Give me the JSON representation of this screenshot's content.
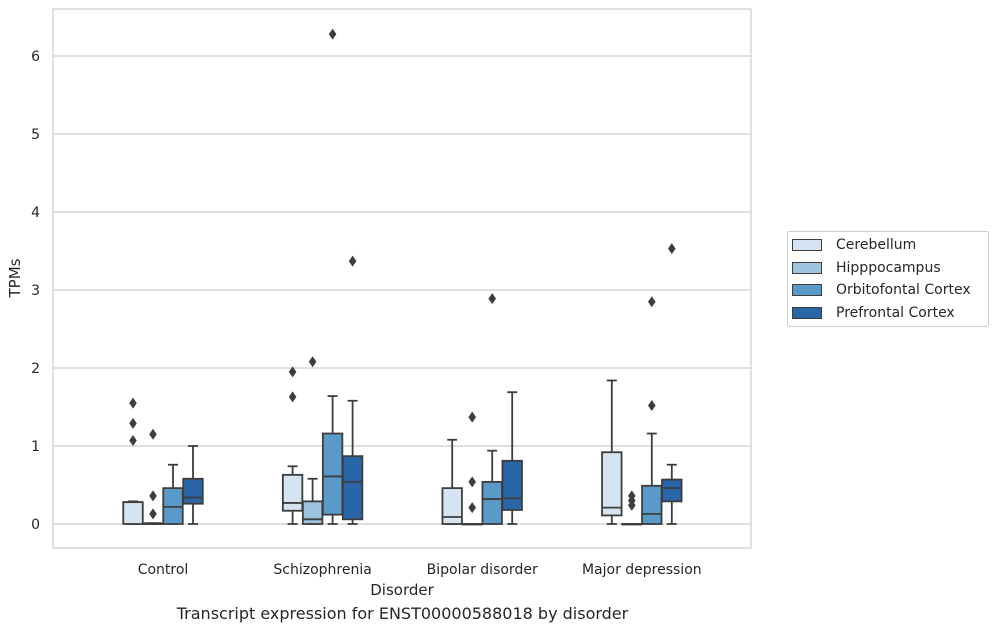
{
  "caption": "Transcript expression for ENST00000588018 by disorder",
  "chart_data": {
    "type": "box",
    "title": "",
    "xlabel": "Disorder",
    "ylabel": "TPMs",
    "ylim": [
      -0.3,
      6.6
    ],
    "yticks": [
      0,
      1,
      2,
      3,
      4,
      5,
      6
    ],
    "grid": "horizontal",
    "legend_position": "right",
    "categories": [
      "Control",
      "Schizophrenia",
      "Bipolar disorder",
      "Major depression"
    ],
    "series": [
      {
        "name": "Cerebellum",
        "color": "#d4e4f2",
        "boxes": [
          {
            "q1": 0,
            "median": 0.28,
            "q3": 0.28,
            "whisker_low": 0,
            "whisker_high": 0.29,
            "outliers": [
              1.07,
              1.29,
              1.55
            ]
          },
          {
            "q1": 0.17,
            "median": 0.27,
            "q3": 0.63,
            "whisker_low": 0,
            "whisker_high": 0.74,
            "outliers": [
              1.63,
              1.95
            ]
          },
          {
            "q1": 0,
            "median": 0.09,
            "q3": 0.46,
            "whisker_low": 0,
            "whisker_high": 1.08,
            "outliers": []
          },
          {
            "q1": 0.11,
            "median": 0.21,
            "q3": 0.92,
            "whisker_low": 0,
            "whisker_high": 1.84,
            "outliers": []
          }
        ]
      },
      {
        "name": "Hipppocampus",
        "color": "#9dc4e0",
        "boxes": [
          {
            "q1": 0,
            "median": 0,
            "q3": 0.01,
            "whisker_low": 0,
            "whisker_high": 0.01,
            "outliers": [
              0.13,
              0.36,
              1.15
            ]
          },
          {
            "q1": 0,
            "median": 0.06,
            "q3": 0.29,
            "whisker_low": 0,
            "whisker_high": 0.58,
            "outliers": [
              2.08
            ]
          },
          {
            "q1": 0,
            "median": 0,
            "q3": 0,
            "whisker_low": 0,
            "whisker_high": 0,
            "outliers": [
              0.21,
              0.54,
              1.37
            ]
          },
          {
            "q1": 0,
            "median": 0,
            "q3": 0,
            "whisker_low": 0,
            "whisker_high": 0,
            "outliers": [
              0.24,
              0.3,
              0.36
            ]
          }
        ]
      },
      {
        "name": "Orbitofontal Cortex",
        "color": "#5a9ac8",
        "boxes": [
          {
            "q1": 0,
            "median": 0.22,
            "q3": 0.46,
            "whisker_low": 0,
            "whisker_high": 0.76,
            "outliers": []
          },
          {
            "q1": 0.12,
            "median": 0.61,
            "q3": 1.16,
            "whisker_low": 0,
            "whisker_high": 1.64,
            "outliers": [
              6.28
            ]
          },
          {
            "q1": 0,
            "median": 0.32,
            "q3": 0.54,
            "whisker_low": 0,
            "whisker_high": 0.94,
            "outliers": [
              2.89
            ]
          },
          {
            "q1": 0,
            "median": 0.13,
            "q3": 0.49,
            "whisker_low": 0,
            "whisker_high": 1.16,
            "outliers": [
              1.52,
              2.85
            ]
          }
        ]
      },
      {
        "name": "Prefrontal Cortex",
        "color": "#2866a8",
        "boxes": [
          {
            "q1": 0.26,
            "median": 0.34,
            "q3": 0.58,
            "whisker_low": 0,
            "whisker_high": 1.0,
            "outliers": []
          },
          {
            "q1": 0.06,
            "median": 0.54,
            "q3": 0.87,
            "whisker_low": 0,
            "whisker_high": 1.58,
            "outliers": [
              3.37
            ]
          },
          {
            "q1": 0.18,
            "median": 0.33,
            "q3": 0.81,
            "whisker_low": 0,
            "whisker_high": 1.69,
            "outliers": []
          },
          {
            "q1": 0.29,
            "median": 0.46,
            "q3": 0.57,
            "whisker_low": 0,
            "whisker_high": 0.76,
            "outliers": [
              3.53
            ]
          }
        ]
      }
    ]
  }
}
